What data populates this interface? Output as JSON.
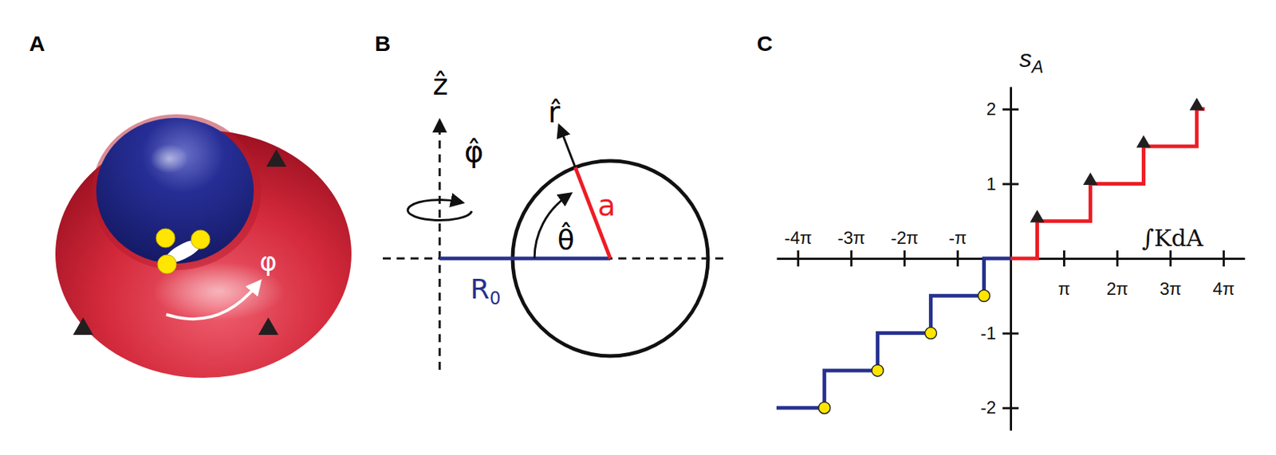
{
  "panels": {
    "A": {
      "label": "A",
      "angle_label": "φ"
    },
    "B": {
      "label": "B",
      "z_label": "ẑ",
      "phi_label": "φ̂",
      "r_label": "r̂",
      "theta_label": "θ̂",
      "radius_label": "a",
      "distance_label": {
        "text": "R",
        "subscript": "0"
      }
    },
    "C": {
      "label": "C"
    }
  },
  "chart_data": {
    "type": "line",
    "xlabel": "∫KdA",
    "ylabel": {
      "text": "s",
      "subscript": "A"
    },
    "xlim": [
      -4.4,
      4.4
    ],
    "ylim": [
      -2.3,
      2.3
    ],
    "xticks": [
      {
        "value": -4,
        "label": "-4π"
      },
      {
        "value": -3,
        "label": "-3π"
      },
      {
        "value": -2,
        "label": "-2π"
      },
      {
        "value": -1,
        "label": "-π"
      },
      {
        "value": 1,
        "label": "π"
      },
      {
        "value": 2,
        "label": "2π"
      },
      {
        "value": 3,
        "label": "3π"
      },
      {
        "value": 4,
        "label": "4π"
      }
    ],
    "yticks": [
      -2,
      -1,
      1,
      2
    ],
    "grid": false,
    "series": [
      {
        "type": "line",
        "line_style": "step",
        "color": "#ee1c24",
        "x": [
          0,
          0.5,
          1.5,
          2.5,
          3.5,
          3.65
        ],
        "values": [
          0,
          0.5,
          1,
          1.5,
          2,
          2
        ]
      },
      {
        "type": "line",
        "line_style": "step",
        "color": "#27318f",
        "x": [
          -4.4,
          -3.5,
          -2.5,
          -1.5,
          -0.5,
          0
        ],
        "values": [
          -2,
          -1.5,
          -1,
          -0.5,
          0,
          0
        ]
      },
      {
        "type": "scatter",
        "marker": "triangle",
        "color": "#231f20",
        "x": [
          0.5,
          1.5,
          2.5,
          3.5
        ],
        "values": [
          0.5,
          1,
          1.5,
          2
        ]
      },
      {
        "type": "scatter",
        "marker": "circle",
        "color": "#ffe600",
        "x": [
          -0.5,
          -1.5,
          -2.5,
          -3.5
        ],
        "values": [
          -0.5,
          -1,
          -1.5,
          -2
        ]
      }
    ]
  }
}
